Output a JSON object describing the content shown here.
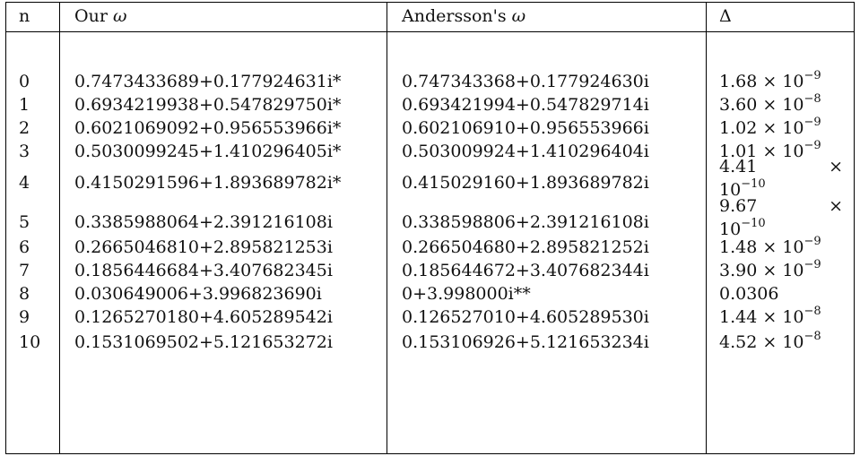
{
  "table": {
    "headers": {
      "n": "n",
      "ours_prefix": "Our ",
      "andersson_prefix": "Andersson's ",
      "omega": "ω",
      "delta": "Δ"
    },
    "times": "×",
    "ten": "10",
    "rows": [
      {
        "n": "0",
        "ours": "0.7473433689+0.177924631i*",
        "andersson": "0.747343368+0.177924630i",
        "delta_mant": "1.68",
        "delta_exp": "−9",
        "delta_plain": null,
        "split": false
      },
      {
        "n": "1",
        "ours": "0.6934219938+0.547829750i*",
        "andersson": "0.693421994+0.547829714i",
        "delta_mant": "3.60",
        "delta_exp": "−8",
        "delta_plain": null,
        "split": false
      },
      {
        "n": "2",
        "ours": "0.6021069092+0.956553966i*",
        "andersson": "0.602106910+0.956553966i",
        "delta_mant": "1.02",
        "delta_exp": "−9",
        "delta_plain": null,
        "split": false
      },
      {
        "n": "3",
        "ours": "0.5030099245+1.410296405i*",
        "andersson": "0.503009924+1.410296404i",
        "delta_mant": "1.01",
        "delta_exp": "−9",
        "delta_plain": null,
        "split": false
      },
      {
        "n": "4",
        "ours": "0.4150291596+1.893689782i*",
        "andersson": "0.415029160+1.893689782i",
        "delta_mant": "4.41",
        "delta_exp": "−10",
        "delta_plain": null,
        "split": true
      },
      {
        "n": "5",
        "ours": "0.3385988064+2.391216108i",
        "andersson": "0.338598806+2.391216108i",
        "delta_mant": "9.67",
        "delta_exp": "−10",
        "delta_plain": null,
        "split": true
      },
      {
        "n": "6",
        "ours": "0.2665046810+2.895821253i",
        "andersson": "0.266504680+2.895821252i",
        "delta_mant": "1.48",
        "delta_exp": "−9",
        "delta_plain": null,
        "split": false
      },
      {
        "n": "7",
        "ours": "0.1856446684+3.407682345i",
        "andersson": "0.185644672+3.407682344i",
        "delta_mant": "3.90",
        "delta_exp": "−9",
        "delta_plain": null,
        "split": false
      },
      {
        "n": "8",
        "ours": "0.030649006+3.996823690i",
        "andersson": "0+3.998000i**",
        "delta_mant": null,
        "delta_exp": null,
        "delta_plain": "0.0306",
        "split": false
      },
      {
        "n": "9",
        "ours": "0.1265270180+4.605289542i",
        "andersson": "0.126527010+4.605289530i",
        "delta_mant": "1.44",
        "delta_exp": "−8",
        "delta_plain": null,
        "split": false
      },
      {
        "n": "10",
        "ours": "0.1531069502+5.121653272i",
        "andersson": "0.153106926+5.121653234i",
        "delta_mant": "4.52",
        "delta_exp": "−8",
        "delta_plain": null,
        "split": false
      }
    ]
  }
}
